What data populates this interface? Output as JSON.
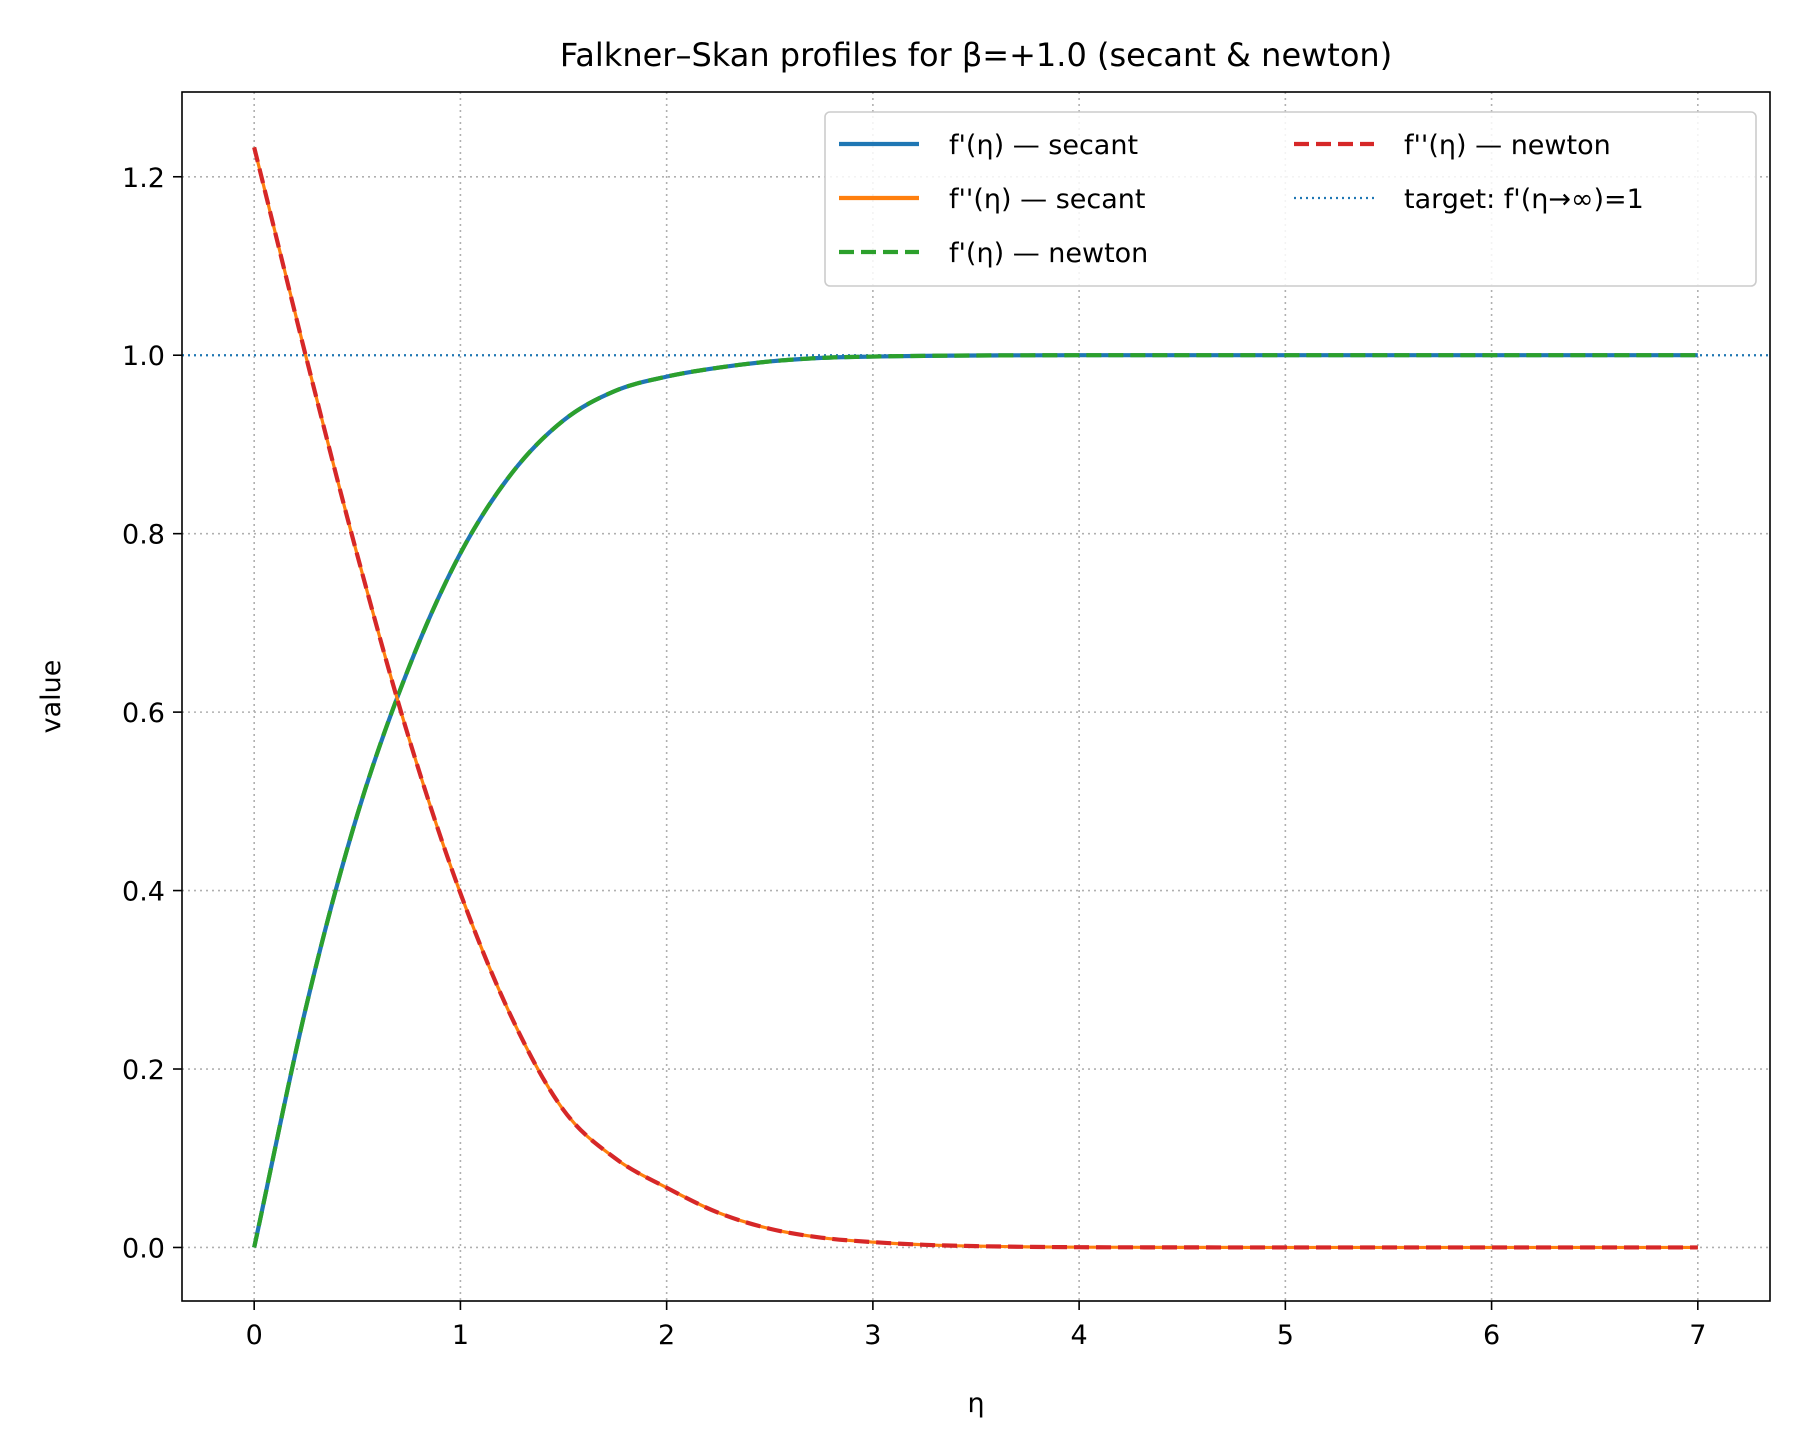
{
  "chart_data": {
    "type": "line",
    "title": "Falkner–Skan profiles for β=+1.0 (secant & newton)",
    "xlabel": "η",
    "ylabel": "value",
    "xlim": [
      -0.35,
      7.35
    ],
    "ylim": [
      -0.06,
      1.295
    ],
    "xticks": [
      0,
      1,
      2,
      3,
      4,
      5,
      6,
      7
    ],
    "xtick_labels": [
      "0",
      "1",
      "2",
      "3",
      "4",
      "5",
      "6",
      "7"
    ],
    "yticks": [
      0.0,
      0.2,
      0.4,
      0.6,
      0.8,
      1.0,
      1.2
    ],
    "ytick_labels": [
      "0.0",
      "0.2",
      "0.4",
      "0.6",
      "0.8",
      "1.0",
      "1.2"
    ],
    "grid": true,
    "legend": {
      "position": "top-right",
      "columns": 2
    },
    "x": [
      0,
      0.25,
      0.5,
      0.75,
      1.0,
      1.25,
      1.5,
      1.75,
      2.0,
      2.25,
      2.5,
      2.75,
      3.0,
      3.25,
      3.5,
      3.75,
      4.0,
      4.5,
      5.0,
      5.5,
      6.0,
      6.5,
      7.0
    ],
    "series": [
      {
        "name": "f'(η) — secant",
        "color": "#1f77b4",
        "style": "solid",
        "values": [
          0.0,
          0.268,
          0.485,
          0.65,
          0.778,
          0.868,
          0.927,
          0.96,
          0.976,
          0.986,
          0.993,
          0.997,
          0.9985,
          0.9993,
          0.9997,
          0.9999,
          1.0,
          1.0,
          1.0,
          1.0,
          1.0,
          1.0,
          1.0
        ]
      },
      {
        "name": "f''(η) — secant",
        "color": "#ff7f0e",
        "style": "solid",
        "values": [
          1.233,
          0.9995,
          0.776,
          0.571,
          0.397,
          0.257,
          0.154,
          0.1,
          0.067,
          0.039,
          0.021,
          0.011,
          0.006,
          0.003,
          0.0015,
          0.0007,
          0.0003,
          0.0001,
          0.0,
          0.0,
          0.0,
          0.0,
          0.0
        ]
      },
      {
        "name": "f'(η) — newton",
        "color": "#2ca02c",
        "style": "dashed",
        "values": [
          0.0,
          0.268,
          0.485,
          0.65,
          0.778,
          0.868,
          0.927,
          0.96,
          0.976,
          0.986,
          0.993,
          0.997,
          0.9985,
          0.9993,
          0.9997,
          0.9999,
          1.0,
          1.0,
          1.0,
          1.0,
          1.0,
          1.0,
          1.0
        ]
      },
      {
        "name": "f''(η) — newton",
        "color": "#d62728",
        "style": "dashed",
        "values": [
          1.233,
          0.9995,
          0.776,
          0.571,
          0.397,
          0.257,
          0.154,
          0.1,
          0.067,
          0.039,
          0.021,
          0.011,
          0.006,
          0.003,
          0.0015,
          0.0007,
          0.0003,
          0.0001,
          0.0,
          0.0,
          0.0,
          0.0,
          0.0
        ]
      }
    ],
    "reference_lines": [
      {
        "name": "target: f'(η→∞)=1",
        "orientation": "horizontal",
        "y": 1.0,
        "color": "#1f77b4",
        "style": "dotted"
      }
    ]
  }
}
